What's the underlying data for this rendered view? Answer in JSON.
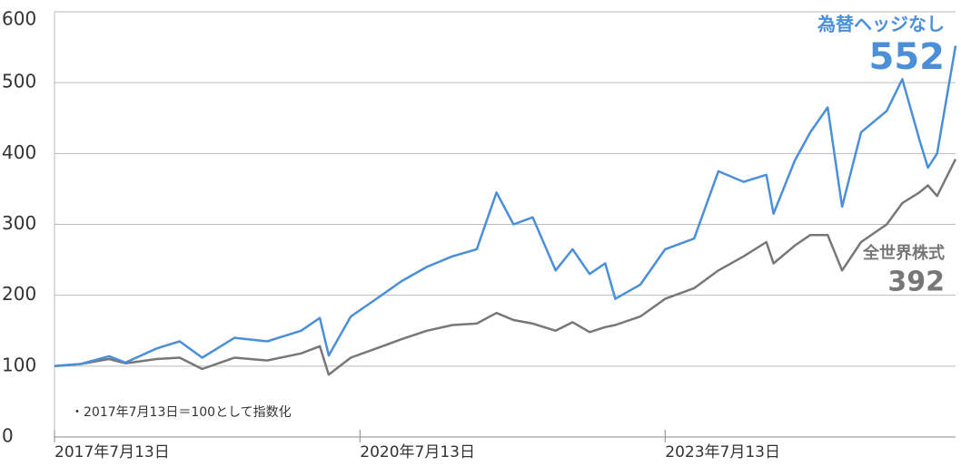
{
  "chart_data": {
    "type": "line",
    "annotation": "・2017年7月13日＝100として指数化",
    "x": [
      "2017-07-13",
      "2017-10-15",
      "2018-01-25",
      "2018-03-25",
      "2018-07-15",
      "2018-10-05",
      "2018-12-25",
      "2019-04-20",
      "2019-08-15",
      "2019-12-15",
      "2020-02-20",
      "2020-03-23",
      "2020-06-10",
      "2020-09-10",
      "2020-12-10",
      "2021-03-10",
      "2021-06-10",
      "2021-09-05",
      "2021-11-15",
      "2022-01-15",
      "2022-03-25",
      "2022-06-15",
      "2022-08-15",
      "2022-10-15",
      "2022-12-10",
      "2023-01-15",
      "2023-04-15",
      "2023-07-13",
      "2023-10-25",
      "2024-01-20",
      "2024-04-20",
      "2024-07-10",
      "2024-08-05",
      "2024-10-20",
      "2024-12-15",
      "2025-02-15",
      "2025-04-08",
      "2025-06-15",
      "2025-09-15",
      "2025-11-10",
      "2026-01-10",
      "2026-02-10",
      "2026-03-15",
      "2026-05-20"
    ],
    "xlim": [
      "2017-07-13",
      "2026-05-20"
    ],
    "xticks": [
      {
        "value": "2017-07-13",
        "label": "2017年7月13日"
      },
      {
        "value": "2020-07-13",
        "label": "2020年7月13日"
      },
      {
        "value": "2023-07-13",
        "label": "2023年7月13日"
      }
    ],
    "ylim": [
      0,
      600
    ],
    "yticks": [
      0,
      100,
      200,
      300,
      400,
      500,
      600
    ],
    "grid": true,
    "series": [
      {
        "name": "為替ヘッジなし",
        "color": "#4a8fd8",
        "values": [
          100,
          103,
          114,
          105,
          125,
          135,
          112,
          140,
          135,
          150,
          168,
          115,
          170,
          195,
          220,
          240,
          255,
          265,
          345,
          300,
          310,
          235,
          265,
          230,
          245,
          195,
          215,
          265,
          280,
          375,
          360,
          370,
          315,
          390,
          430,
          465,
          325,
          430,
          460,
          505,
          420,
          380,
          400,
          552
        ]
      },
      {
        "name": "全世界株式",
        "color": "#777777",
        "values": [
          100,
          103,
          110,
          104,
          110,
          112,
          96,
          112,
          108,
          118,
          128,
          88,
          112,
          125,
          138,
          150,
          158,
          160,
          175,
          165,
          160,
          150,
          162,
          148,
          155,
          158,
          170,
          195,
          210,
          235,
          255,
          275,
          245,
          270,
          285,
          285,
          235,
          275,
          300,
          330,
          345,
          355,
          340,
          392
        ]
      }
    ]
  }
}
